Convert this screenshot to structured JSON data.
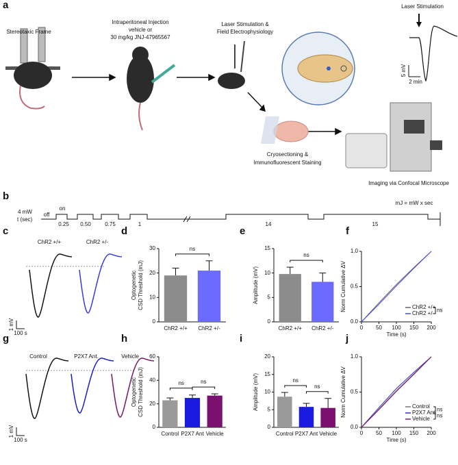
{
  "panels": [
    "a",
    "b",
    "c",
    "d",
    "e",
    "f",
    "g",
    "h",
    "i",
    "j"
  ],
  "schematic": {
    "stereotaxic_frame": "Stereotaxic Frame",
    "injection": [
      "Intraperitoneal Injection",
      "vehicle or",
      "30 mg/kg JNJ-47965567"
    ],
    "stimulation": [
      "Laser Stimulation &",
      "Field Electrophysiology"
    ],
    "trace_title": "Laser Stimulation",
    "trace_scale_y": "5 mV",
    "trace_scale_x": "2 min",
    "sectioning": [
      "Cryosectioning &",
      "Immunofluorescent Staining"
    ],
    "imaging": "Imaging via Confocal Microscope"
  },
  "protocol": {
    "power": "4 mW",
    "time": "t (sec)",
    "off": "off",
    "on": "on",
    "durations": [
      "0.25",
      "0.50",
      "0.75",
      "1",
      "14",
      "15"
    ],
    "formula": "mJ = mW x sec"
  },
  "traces_c": {
    "labels": [
      "ChR2 +/+",
      "ChR2 +/-"
    ],
    "colors": [
      "#111111",
      "#3a3ad8"
    ],
    "scale_y": "1 mV",
    "scale_x": "100 s"
  },
  "traces_g": {
    "labels": [
      "Control",
      "P2X7 Ant.",
      "Vehicle"
    ],
    "colors": [
      "#111111",
      "#1a1ad0",
      "#7a1466"
    ],
    "scale_y": "1 mV",
    "scale_x": "100 s"
  },
  "chart_data": [
    {
      "type": "bar",
      "ylabel": [
        "Optogenetic",
        "CSD Threshold (mJ)"
      ],
      "categories": [
        "ChR2 +/+",
        "ChR2 +/-"
      ],
      "values": [
        19,
        21
      ],
      "errors": [
        3,
        4
      ],
      "colors": [
        "#8c8c8c",
        "#6b6bff"
      ],
      "ylim": [
        0,
        30
      ],
      "yticks": [
        0,
        10,
        20,
        30
      ],
      "significance": [
        "ns"
      ]
    },
    {
      "type": "bar",
      "ylabel": [
        "Amplitude (mV)"
      ],
      "categories": [
        "ChR2 +/+",
        "ChR2 +/-"
      ],
      "values": [
        9.8,
        8.2
      ],
      "errors": [
        1.4,
        1.8
      ],
      "colors": [
        "#8c8c8c",
        "#6b6bff"
      ],
      "ylim": [
        0,
        15
      ],
      "yticks": [
        0,
        5,
        10,
        15
      ],
      "significance": [
        "ns"
      ]
    },
    {
      "type": "line",
      "ylabel": [
        "Norm Cumulative ΔV"
      ],
      "xlabel": "Time (s)",
      "x": [
        0,
        50,
        100,
        150,
        200
      ],
      "series": [
        {
          "name": "ChR2 +/+",
          "color": "#666666",
          "values": [
            0,
            0.27,
            0.53,
            0.77,
            1.0
          ]
        },
        {
          "name": "ChR2 +/-",
          "color": "#4a4ae0",
          "values": [
            0,
            0.25,
            0.51,
            0.76,
            1.0
          ]
        }
      ],
      "xlim": [
        0,
        200
      ],
      "xticks": [
        0,
        50,
        100,
        150,
        200
      ],
      "ylim": [
        0,
        1
      ],
      "yticks": [
        {
          "value": 0,
          "label": "0.0"
        },
        {
          "value": 0.5,
          "label": "0.5"
        },
        {
          "value": 1,
          "label": "1.0"
        }
      ],
      "legend": "lower right",
      "significance": [
        "ns"
      ]
    },
    {
      "type": "bar",
      "ylabel": [
        "Optogenetic",
        "CSD Threshold (mJ)"
      ],
      "categories": [
        "Control",
        "P2X7 Ant",
        "Vehicle"
      ],
      "values": [
        23,
        25,
        27
      ],
      "errors": [
        2,
        2.5,
        1.5
      ],
      "colors": [
        "#9a9a9a",
        "#1a1ae0",
        "#7b1070"
      ],
      "ylim": [
        0,
        60
      ],
      "yticks": [
        0,
        20,
        40,
        60
      ],
      "significance": [
        "ns",
        "ns"
      ]
    },
    {
      "type": "bar",
      "ylabel": [
        "Amplitude (mV)"
      ],
      "categories": [
        "Control",
        "P2X7 Ant",
        "Vehicle"
      ],
      "values": [
        8.7,
        5.8,
        5.5
      ],
      "errors": [
        1.2,
        1.0,
        2.7
      ],
      "colors": [
        "#9a9a9a",
        "#1a1ae0",
        "#7b1070"
      ],
      "ylim": [
        0,
        20
      ],
      "yticks": [
        0,
        5,
        10,
        15,
        20
      ],
      "significance": [
        "ns",
        "ns"
      ]
    },
    {
      "type": "line",
      "ylabel": [
        "Norm Cumulative ΔV"
      ],
      "xlabel": "Time (s)",
      "x": [
        0,
        50,
        100,
        150,
        200
      ],
      "series": [
        {
          "name": "Control",
          "color": "#777777",
          "values": [
            0,
            0.26,
            0.52,
            0.76,
            1.0
          ]
        },
        {
          "name": "P2X7 Ant.",
          "color": "#3030d0",
          "values": [
            0,
            0.28,
            0.55,
            0.78,
            1.0
          ]
        },
        {
          "name": "Vehicle",
          "color": "#8a1a5a",
          "values": [
            0,
            0.25,
            0.51,
            0.75,
            1.0
          ]
        }
      ],
      "xlim": [
        0,
        200
      ],
      "xticks": [
        0,
        50,
        100,
        150,
        200
      ],
      "ylim": [
        0,
        1
      ],
      "yticks": [
        {
          "value": 0,
          "label": "0.0"
        },
        {
          "value": 0.5,
          "label": "0.5"
        },
        {
          "value": 1,
          "label": "1.0"
        }
      ],
      "legend": "lower right",
      "significance": [
        "ns",
        "ns"
      ]
    }
  ]
}
